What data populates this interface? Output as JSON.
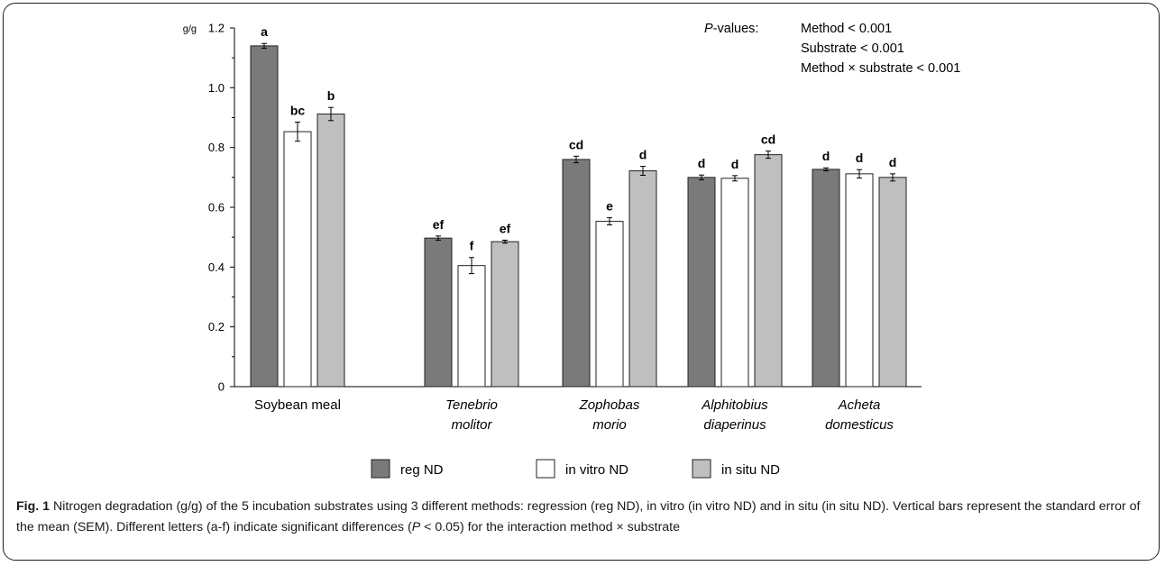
{
  "chart_data": {
    "type": "bar",
    "ylabel": "g/g",
    "ylim": [
      0,
      1.2
    ],
    "yticks": [
      "0",
      "0.2",
      "0.4",
      "0.6",
      "0.8",
      "1.0",
      "1.2"
    ],
    "categories": [
      {
        "line1": "Soybean meal",
        "line2": "",
        "italic": false
      },
      {
        "line1": "Tenebrio",
        "line2": "molitor",
        "italic": true
      },
      {
        "line1": "Zophobas",
        "line2": "morio",
        "italic": true
      },
      {
        "line1": "Alphitobius",
        "line2": "diaperinus",
        "italic": true
      },
      {
        "line1": "Acheta",
        "line2": "domesticus",
        "italic": true
      }
    ],
    "series": [
      {
        "name": "reg ND",
        "color": "#7a7a7a",
        "values": [
          1.14,
          0.497,
          0.76,
          0.7,
          0.727
        ],
        "errors": [
          0.008,
          0.007,
          0.011,
          0.008,
          0.005
        ],
        "letters": [
          "a",
          "ef",
          "cd",
          "d",
          "d"
        ]
      },
      {
        "name": "in vitro ND",
        "color": "#ffffff",
        "values": [
          0.853,
          0.405,
          0.553,
          0.697,
          0.712
        ],
        "errors": [
          0.032,
          0.027,
          0.012,
          0.009,
          0.014
        ],
        "letters": [
          "bc",
          "f",
          "e",
          "d",
          "d"
        ]
      },
      {
        "name": "in situ ND",
        "color": "#bfbfbf",
        "values": [
          0.912,
          0.485,
          0.722,
          0.776,
          0.7
        ],
        "errors": [
          0.022,
          0.005,
          0.015,
          0.012,
          0.012
        ],
        "letters": [
          "b",
          "ef",
          "d",
          "cd",
          "d"
        ]
      }
    ],
    "pvalues": {
      "lead_italic": "P",
      "lead": "-values:",
      "lines": [
        "Method < 0.001",
        "Substrate < 0.001",
        "Method × substrate < 0.001"
      ]
    }
  },
  "caption": {
    "label": "Fig. 1",
    "text_a": " Nitrogen degradation (g/g) of the 5 incubation substrates using 3 different methods: regression (reg ND), in vitro (in vitro ND) and in situ (in situ ND). Vertical bars represent the standard error of the mean (SEM). Different letters (a-f) indicate significant differences (",
    "p_italic": "P",
    "text_b": " < 0.05) for the interaction method × substrate"
  }
}
